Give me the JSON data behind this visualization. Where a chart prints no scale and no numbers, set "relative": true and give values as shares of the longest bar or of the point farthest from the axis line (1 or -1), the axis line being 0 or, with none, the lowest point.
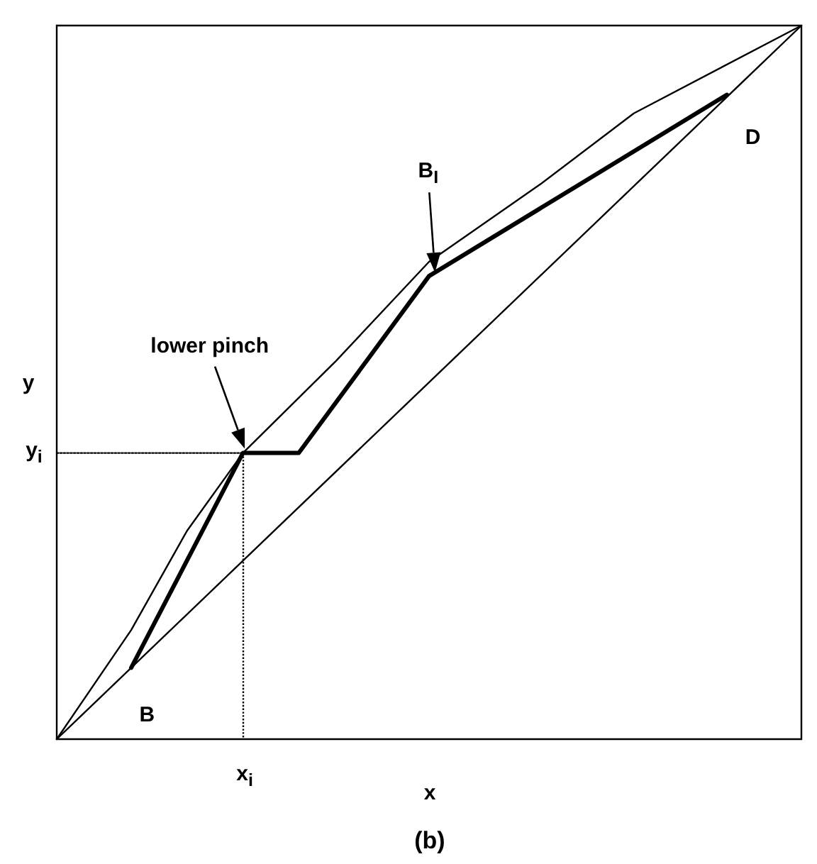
{
  "chart_data": {
    "type": "line",
    "relative": true,
    "xlabel": "x",
    "ylabel": "y",
    "grid": false,
    "marker": "none",
    "categories": [
      null,
      null,
      null,
      null,
      null,
      null,
      null,
      null,
      null,
      null,
      null,
      null,
      null,
      null,
      null,
      null,
      null,
      null,
      null,
      null,
      null,
      null,
      null,
      null,
      null,
      null,
      null,
      null,
      null,
      null,
      null,
      null,
      null,
      null,
      null,
      null,
      null,
      null,
      null,
      null,
      null
    ],
    "series": [
      {
        "color": "#000000",
        "line_style": "solid",
        "values": [
          0,
          null,
          null,
          null,
          0.153,
          null,
          null,
          0.292,
          null,
          null,
          0.401,
          null,
          null,
          null,
          null,
          0.53,
          null,
          null,
          null,
          null,
          0.669,
          null,
          null,
          null,
          null,
          null,
          0.778,
          null,
          null,
          null,
          null,
          0.877,
          null,
          null,
          null,
          null,
          null,
          null,
          null,
          null,
          1
        ]
      },
      {
        "color": "#000000",
        "line_style": "solid",
        "values": [
          0,
          null,
          null,
          null,
          null,
          null,
          null,
          null,
          null,
          null,
          null,
          null,
          null,
          null,
          null,
          null,
          null,
          null,
          null,
          null,
          null,
          null,
          null,
          null,
          null,
          null,
          null,
          null,
          null,
          null,
          null,
          null,
          null,
          null,
          null,
          null,
          null,
          null,
          null,
          null,
          1
        ]
      },
      {
        "color": "#000000",
        "line_style": "solid",
        "values": [
          null,
          null,
          null,
          null,
          0.1,
          null,
          null,
          null,
          null,
          null,
          0.401,
          null,
          null,
          0.401,
          null,
          null,
          null,
          null,
          null,
          null,
          0.649,
          null,
          null,
          null,
          null,
          null,
          null,
          null,
          null,
          null,
          null,
          null,
          null,
          null,
          null,
          null,
          0.903,
          null,
          null,
          null,
          null
        ]
      },
      {
        "color": "#000000",
        "line_style": "dotted",
        "values": [
          0.401,
          null,
          null,
          null,
          null,
          null,
          null,
          null,
          null,
          null,
          0.401,
          null,
          null,
          null,
          null,
          null,
          null,
          null,
          null,
          null,
          null,
          null,
          null,
          null,
          null,
          null,
          null,
          null,
          null,
          null,
          null,
          null,
          null,
          null,
          null,
          null,
          null,
          null,
          null,
          null,
          null
        ]
      }
    ],
    "annotations": [
      "lower pinch",
      "B$_{I}$",
      "B",
      "D",
      "x$_{i}$",
      "y$_{i}$",
      "(b)"
    ]
  }
}
